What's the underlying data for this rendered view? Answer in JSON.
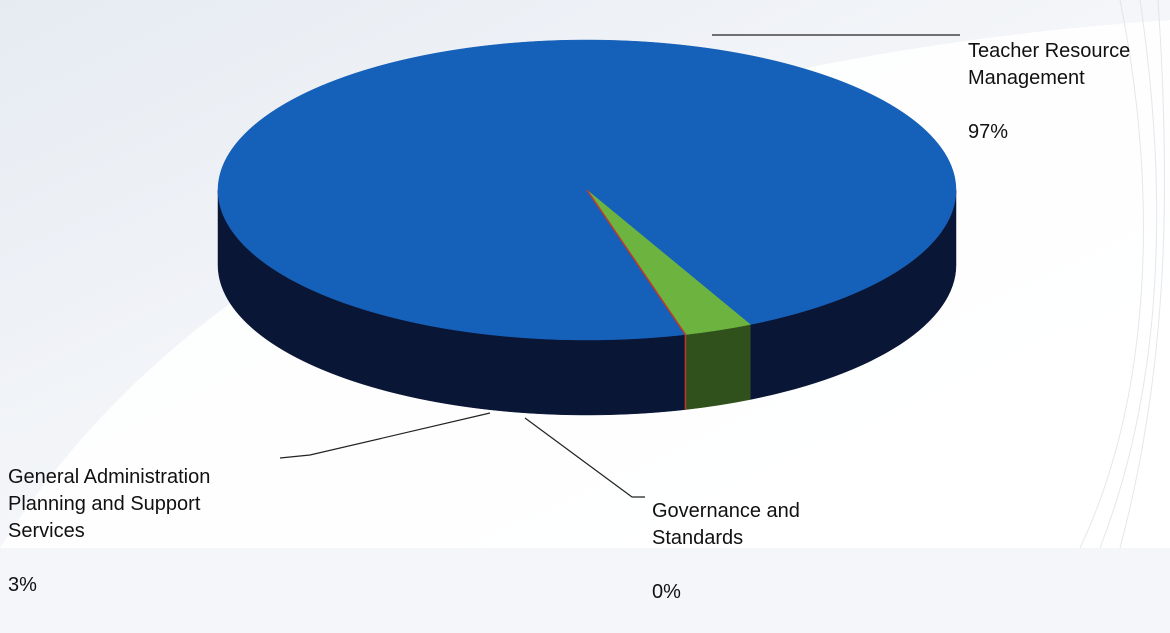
{
  "chart_data": {
    "type": "pie",
    "style": "3d",
    "colors": {
      "Teacher Resource Management": "#1560b8",
      "General Administration Planning and Support Services": "#6db33f",
      "Governance and Standards": "#c0392b"
    },
    "slices": [
      {
        "name": "Teacher Resource Management",
        "value": 97,
        "label": "Teacher Resource\nManagement",
        "pct": "97%"
      },
      {
        "name": "General Administration Planning and Support Services",
        "value": 3,
        "label": "General Administration\nPlanning and Support\nServices",
        "pct": "3%"
      },
      {
        "name": "Governance and Standards",
        "value": 0,
        "label": "Governance and\nStandards",
        "pct": "0%"
      }
    ]
  }
}
